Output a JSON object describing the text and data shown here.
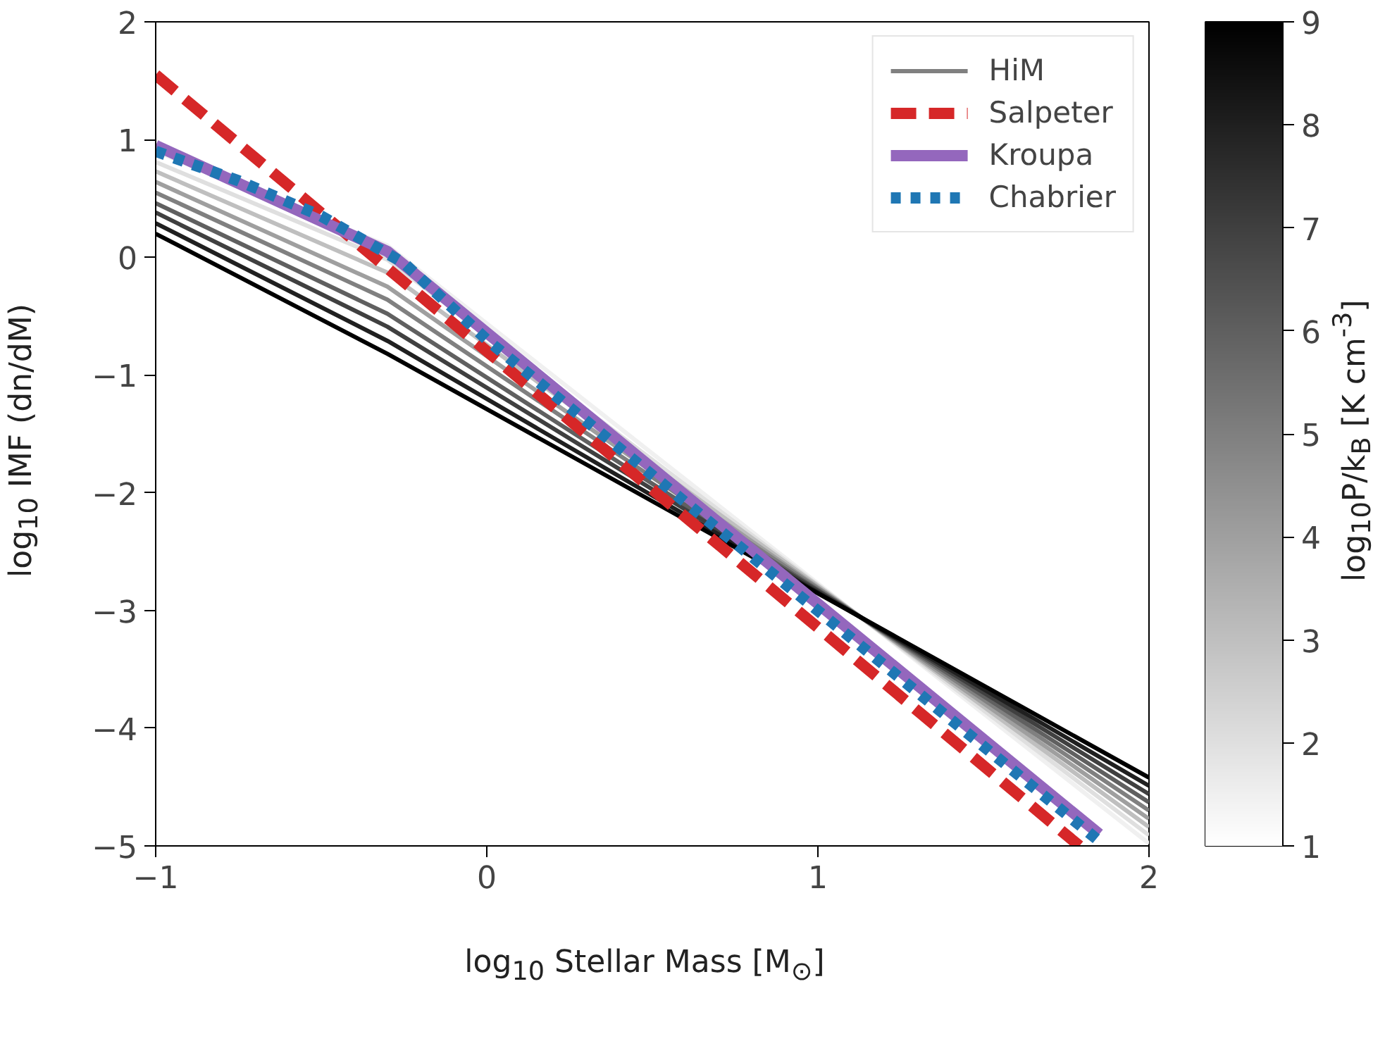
{
  "chart_data": {
    "type": "line",
    "xlabel": "log$_{10}$ Stellar Mass [M$_{⊙}$]",
    "ylabel": "log$_{10}$ IMF (dn/dM)",
    "clabel": "log$_{10}$P/k$_{B}$ [K cm$^{-3}$]",
    "xlim": [
      -1,
      2
    ],
    "ylim": [
      -5,
      2
    ],
    "xticks": [
      {
        "value": -1,
        "label": "−1"
      },
      0,
      1,
      2
    ],
    "yticks": [
      {
        "value": -5,
        "label": "−5"
      },
      {
        "value": -4,
        "label": "−4"
      },
      {
        "value": -3,
        "label": "−3"
      },
      {
        "value": -2,
        "label": "−2"
      },
      {
        "value": -1,
        "label": "−1"
      },
      0,
      1,
      2
    ],
    "clim": [
      1,
      9
    ],
    "cticks": [
      1,
      2,
      3,
      4,
      5,
      6,
      7,
      8,
      9
    ],
    "legend": "top right",
    "series": [
      {
        "color": "#f0f0f0",
        "x": [
          -1,
          -0.3,
          2
        ],
        "values": [
          0.9,
          0.1,
          -4.98
        ]
      },
      {
        "color": "#dfdfdf",
        "x": [
          -1,
          -0.3,
          2
        ],
        "values": [
          0.81,
          -0.02,
          -4.91
        ]
      },
      {
        "color": "#bfbfbf",
        "x": [
          -1,
          -0.3,
          2
        ],
        "values": [
          0.73,
          -0.13,
          -4.84
        ]
      },
      {
        "color": "#9f9f9f",
        "x": [
          -1,
          -0.3,
          2
        ],
        "values": [
          0.64,
          -0.25,
          -4.77
        ]
      },
      {
        "name": "HiM",
        "color": "#808080",
        "x": [
          -1,
          -0.3,
          2
        ],
        "values": [
          0.55,
          -0.36,
          -4.7
        ]
      },
      {
        "color": "#606060",
        "x": [
          -1,
          -0.3,
          2
        ],
        "values": [
          0.46,
          -0.48,
          -4.63
        ]
      },
      {
        "color": "#404040",
        "x": [
          -1,
          -0.3,
          2
        ],
        "values": [
          0.38,
          -0.59,
          -4.56
        ]
      },
      {
        "color": "#202020",
        "x": [
          -1,
          -0.3,
          2
        ],
        "values": [
          0.29,
          -0.71,
          -4.49
        ]
      },
      {
        "color": "#000000",
        "x": [
          -1,
          -0.3,
          2
        ],
        "values": [
          0.2,
          -0.82,
          -4.42
        ]
      },
      {
        "name": "Salpeter",
        "color": "#d62728",
        "line_style": "dashed",
        "x": [
          -1,
          1.79
        ],
        "values": [
          1.55,
          -5
        ]
      },
      {
        "name": "Kroupa",
        "color": "#9467bd",
        "line_style": "solid",
        "x": [
          -1,
          -0.3,
          1.85
        ],
        "values": [
          0.95,
          0.05,
          -4.9
        ]
      },
      {
        "name": "Chabrier",
        "color": "#1f77b4",
        "line_style": "dotted",
        "x": [
          -1,
          -0.75,
          -0.5,
          -0.25,
          0,
          1.85
        ],
        "values": [
          0.9,
          0.65,
          0.35,
          -0.05,
          -0.7,
          -4.96
        ]
      }
    ]
  }
}
